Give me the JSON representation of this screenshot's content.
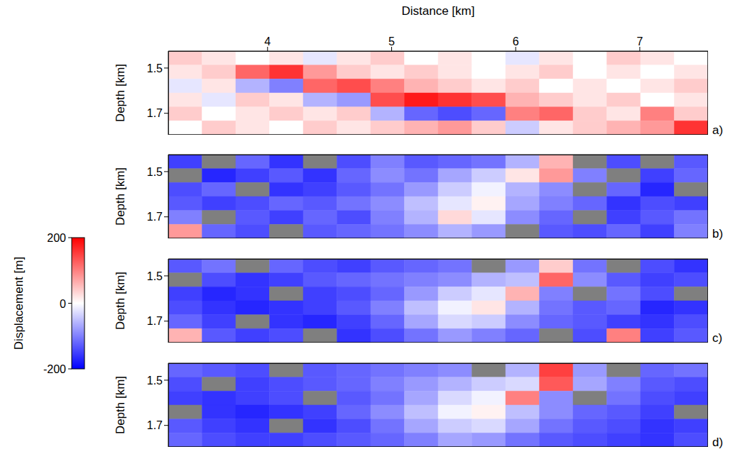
{
  "colorbar": {
    "label": "Displacement [m]",
    "range": [
      -200,
      200
    ],
    "ticks": [
      -200,
      0,
      200
    ]
  },
  "chart_data": [
    {
      "type": "heatmap",
      "title": "a)",
      "x_label": "Distance [km]",
      "y_label": "Depth [km]",
      "tick_labels": true,
      "xlim": [
        3.2,
        7.55
      ],
      "xticks": [
        4,
        5,
        6,
        7
      ],
      "ylim": [
        1.425,
        1.795
      ],
      "yticks": [
        1.5,
        1.7
      ],
      "cell_range": [
        -1,
        1
      ],
      "cells": [
        [
          0.2,
          0.1,
          0,
          0.1,
          -0.1,
          0.1,
          0.2,
          0,
          0.1,
          0,
          -0.1,
          0.1,
          0,
          0.2,
          0.1,
          0
        ],
        [
          0.1,
          0.2,
          0.6,
          0.8,
          0.4,
          0.2,
          0.1,
          0.2,
          0.1,
          0,
          0.1,
          0.2,
          0,
          0.1,
          0,
          0.1
        ],
        [
          -0.1,
          0.1,
          -0.3,
          -0.5,
          0.6,
          0.7,
          0.5,
          0.3,
          0.2,
          0.1,
          0.2,
          0,
          0.1,
          0,
          0.1,
          0.2
        ],
        [
          0.1,
          -0.1,
          0.2,
          0.1,
          -0.3,
          -0.4,
          0.7,
          0.9,
          0.8,
          0.7,
          0.3,
          0.2,
          0.1,
          0.2,
          0,
          0.1
        ],
        [
          0.2,
          0,
          0.1,
          0.2,
          0.1,
          0.2,
          -0.3,
          -0.6,
          -0.7,
          -0.6,
          0.5,
          0.6,
          0.2,
          0.1,
          0.5,
          0.2
        ],
        [
          0,
          0.2,
          0.1,
          0,
          0.2,
          0.1,
          0.2,
          0.3,
          0.4,
          0.2,
          -0.2,
          0.1,
          0.2,
          0.3,
          0.4,
          0.8
        ]
      ]
    },
    {
      "type": "heatmap",
      "title": "b)",
      "y_label": "Depth [km]",
      "tick_labels": "y",
      "xlim": [
        3.2,
        7.55
      ],
      "xticks": [
        4,
        5,
        6,
        7
      ],
      "ylim": [
        1.425,
        1.795
      ],
      "yticks": [
        1.5,
        1.7
      ],
      "cell_range": [
        -200,
        200
      ],
      "cells": [
        [
          -150,
          null,
          -120,
          -160,
          null,
          -140,
          -100,
          -130,
          -120,
          -110,
          -60,
          60,
          null,
          -140,
          null,
          -130
        ],
        [
          null,
          -170,
          -150,
          -130,
          -160,
          -120,
          -90,
          -110,
          -70,
          -40,
          20,
          80,
          -100,
          null,
          -150,
          -120
        ],
        [
          -140,
          -120,
          null,
          -160,
          -150,
          -130,
          -110,
          -80,
          -40,
          -10,
          -60,
          -90,
          null,
          -120,
          -170,
          null
        ],
        [
          -130,
          -150,
          -140,
          -120,
          -130,
          -110,
          -90,
          -50,
          -20,
          10,
          -70,
          -100,
          -120,
          -160,
          -140,
          -150
        ],
        [
          -100,
          null,
          -130,
          -150,
          -120,
          -140,
          -100,
          -60,
          30,
          -20,
          -90,
          -120,
          null,
          -150,
          -130,
          -110
        ],
        [
          80,
          -120,
          -140,
          null,
          -130,
          -120,
          -110,
          -90,
          -60,
          -80,
          null,
          -130,
          -140,
          -120,
          -150,
          -100
        ]
      ]
    },
    {
      "type": "heatmap",
      "title": "c)",
      "y_label": "Depth [km]",
      "tick_labels": "y",
      "xlim": [
        3.2,
        7.55
      ],
      "xticks": [
        4,
        5,
        6,
        7
      ],
      "ylim": [
        1.425,
        1.795
      ],
      "yticks": [
        1.5,
        1.7
      ],
      "cell_range": [
        -200,
        200
      ],
      "cells": [
        [
          -130,
          -110,
          null,
          -120,
          -140,
          -150,
          -130,
          -120,
          -110,
          null,
          -80,
          40,
          -110,
          null,
          -140,
          -160
        ],
        [
          null,
          -140,
          -160,
          -150,
          -130,
          -120,
          -110,
          -100,
          -90,
          -60,
          -50,
          120,
          -90,
          -130,
          -150,
          -140
        ],
        [
          -150,
          -170,
          -160,
          null,
          -150,
          -140,
          -120,
          -80,
          -40,
          -20,
          60,
          -100,
          null,
          -110,
          -140,
          null
        ],
        [
          -140,
          -160,
          -170,
          -160,
          -150,
          -130,
          -100,
          -50,
          -10,
          20,
          -60,
          -110,
          -130,
          -120,
          -170,
          -160
        ],
        [
          -120,
          -150,
          null,
          -160,
          -170,
          -150,
          -120,
          -70,
          -30,
          -40,
          -90,
          -120,
          -130,
          -150,
          -160,
          -140
        ],
        [
          60,
          -130,
          -150,
          -140,
          null,
          -160,
          -140,
          -110,
          -80,
          -100,
          -120,
          null,
          -140,
          100,
          -150,
          -130
        ]
      ]
    },
    {
      "type": "heatmap",
      "title": "d)",
      "y_label": "Depth [km]",
      "tick_labels": "y",
      "xlim": [
        3.2,
        7.55
      ],
      "xticks": [
        4,
        5,
        6,
        7
      ],
      "ylim": [
        1.425,
        1.795
      ],
      "yticks": [
        1.5,
        1.7
      ],
      "cell_range": [
        -200,
        200
      ],
      "cells": [
        [
          -120,
          -130,
          -140,
          null,
          -130,
          -120,
          -110,
          -100,
          -90,
          null,
          -60,
          150,
          -80,
          null,
          -120,
          -110
        ],
        [
          -140,
          null,
          -150,
          -140,
          -130,
          -120,
          -100,
          -80,
          -60,
          -40,
          -30,
          130,
          -70,
          -100,
          -130,
          -140
        ],
        [
          -150,
          -160,
          -150,
          -140,
          null,
          -130,
          -110,
          -70,
          -30,
          -10,
          100,
          -90,
          null,
          -110,
          -140,
          -150
        ],
        [
          null,
          -160,
          -170,
          -160,
          -150,
          -120,
          -90,
          -50,
          -10,
          10,
          -50,
          -90,
          -120,
          -130,
          -150,
          null
        ],
        [
          -130,
          -150,
          -160,
          null,
          -160,
          -140,
          -110,
          -70,
          -40,
          -30,
          -70,
          -110,
          -130,
          -140,
          -160,
          -150
        ],
        [
          -120,
          -140,
          -150,
          -150,
          -140,
          -130,
          -120,
          -100,
          -70,
          -80,
          -110,
          -130,
          -140,
          -150,
          -160,
          -140
        ]
      ]
    }
  ]
}
